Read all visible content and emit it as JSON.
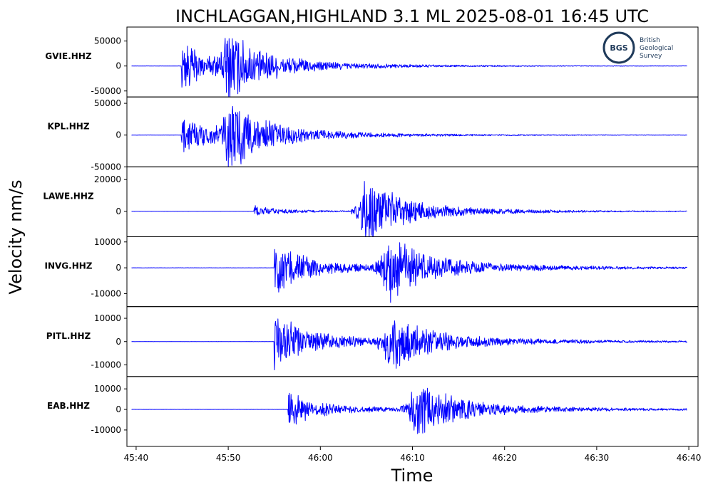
{
  "chart_data": {
    "type": "line",
    "title": "INCHLAGGAN,HIGHLAND 3.1 ML   2025-08-01 16:45 UTC",
    "xlabel": "Time",
    "ylabel": "Velocity nm/s",
    "x_ticks": [
      "45:40",
      "45:50",
      "46:00",
      "46:10",
      "46:20",
      "46:30",
      "46:40"
    ],
    "x_tick_seconds": [
      0,
      10,
      20,
      30,
      40,
      50,
      60
    ],
    "x_range_seconds": [
      -1,
      61
    ],
    "trace_range_seconds": [
      -0.5,
      59.8
    ],
    "line_color": "#0000ff",
    "grid": false,
    "logo": {
      "lines": [
        "British",
        "Geological",
        "Survey"
      ],
      "mark": "BGS"
    },
    "series": [
      {
        "name": "GVIE.HHZ",
        "ylim": [
          -62000,
          78000
        ],
        "yticks": [
          50000,
          0,
          -50000
        ],
        "tick_labels": [
          "50000",
          "0",
          "-50000"
        ],
        "p_arrival": 4.9,
        "p_amp": 48000,
        "s_arrival": 9.9,
        "s_amp": 75000,
        "decay": 10,
        "noise": 800
      },
      {
        "name": "KPL.HHZ",
        "ylim": [
          -50000,
          60000
        ],
        "yticks": [
          50000,
          0,
          -50000
        ],
        "tick_labels": [
          "50000",
          "0",
          "-50000"
        ],
        "p_arrival": 4.9,
        "p_amp": 33000,
        "s_arrival": 10.0,
        "s_amp": 57000,
        "decay": 10,
        "noise": 800
      },
      {
        "name": "LAWE.HHZ",
        "ylim": [
          -16000,
          28000
        ],
        "yticks": [
          20000,
          0
        ],
        "tick_labels": [
          "20000",
          "0"
        ],
        "p_arrival": 12.8,
        "p_amp": 3500,
        "s_arrival": 24.8,
        "s_amp": 26000,
        "decay": 11,
        "noise": 200
      },
      {
        "name": "INVG.HHZ",
        "ylim": [
          -15000,
          12000
        ],
        "yticks": [
          10000,
          0,
          -10000
        ],
        "tick_labels": [
          "10000",
          "0",
          "-10000"
        ],
        "p_arrival": 15.0,
        "p_amp": 11000,
        "s_arrival": 27.2,
        "s_amp": 14000,
        "decay": 13,
        "noise": 150
      },
      {
        "name": "PITL.HHZ",
        "ylim": [
          -15000,
          15000
        ],
        "yticks": [
          10000,
          0,
          -10000
        ],
        "tick_labels": [
          "10000",
          "0",
          "-10000"
        ],
        "p_arrival": 15.0,
        "p_amp": 14000,
        "s_arrival": 27.3,
        "s_amp": 13500,
        "decay": 13,
        "noise": 150
      },
      {
        "name": "EAB.HHZ",
        "ylim": [
          -18000,
          16000
        ],
        "yticks": [
          10000,
          0,
          -10000
        ],
        "tick_labels": [
          "10000",
          "0",
          "-10000"
        ],
        "p_arrival": 16.5,
        "p_amp": 9000,
        "s_arrival": 30.2,
        "s_amp": 17000,
        "decay": 13,
        "noise": 150
      }
    ]
  }
}
